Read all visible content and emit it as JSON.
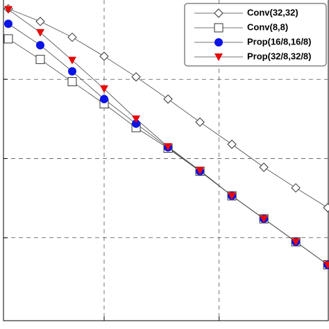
{
  "chart_data": {
    "type": "line",
    "x": [
      0,
      1,
      2,
      3,
      4,
      5,
      6,
      7,
      8,
      9,
      10
    ],
    "xlim": [
      -0.26,
      10.04
    ],
    "xticks": [
      3,
      6.6
    ],
    "ylim": [
      -0.15,
      4.0
    ],
    "yticks": [
      1,
      2,
      3
    ],
    "grid": true,
    "legend": "upper right",
    "series": [
      {
        "name": "Conv(32,32)",
        "color": "#555555",
        "marker": "diamond",
        "values": [
          3.89,
          3.73,
          3.53,
          3.29,
          3.03,
          2.75,
          2.46,
          2.18,
          1.89,
          1.63,
          1.38
        ]
      },
      {
        "name": "Conv(8,8)",
        "color": "#333333",
        "marker": "square",
        "values": [
          3.51,
          3.25,
          2.97,
          2.69,
          2.39,
          2.13,
          1.84,
          1.53,
          1.24,
          0.95,
          0.66
        ]
      },
      {
        "name": "Prop(16/8,16/8)",
        "color": "#0a14e6",
        "marker": "circle",
        "values": [
          3.7,
          3.43,
          3.1,
          2.75,
          2.44,
          2.14,
          1.84,
          1.53,
          1.24,
          0.95,
          0.66
        ]
      },
      {
        "name": "Prop(32/8,32/8)",
        "color": "#e60a0a",
        "marker": "triangle",
        "values": [
          3.88,
          3.59,
          3.24,
          2.88,
          2.5,
          2.15,
          1.85,
          1.53,
          1.24,
          0.95,
          0.66
        ]
      }
    ]
  }
}
